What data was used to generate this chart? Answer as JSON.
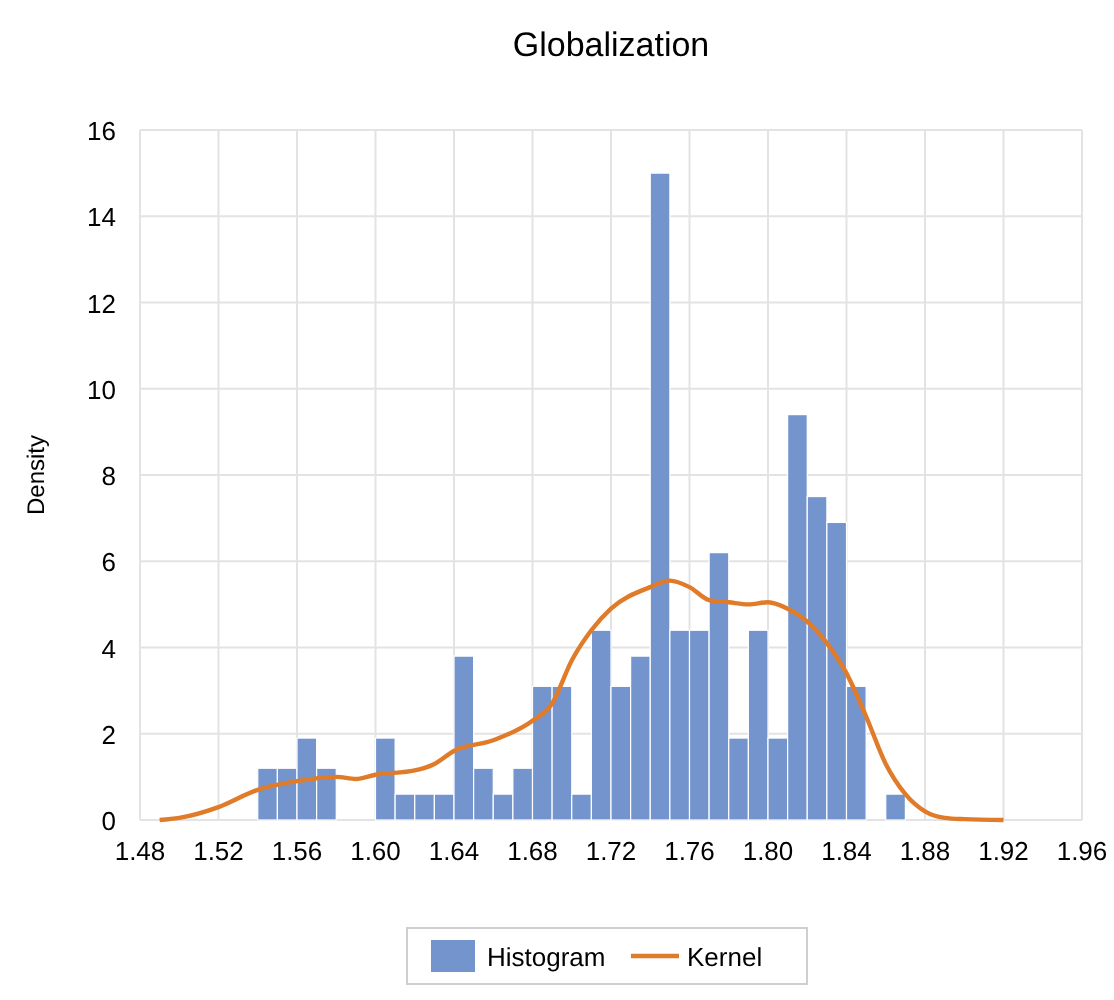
{
  "chart_data": {
    "type": "histogram",
    "title": "Globalization",
    "ylabel": "Density",
    "bins": [
      1.54,
      1.55,
      1.56,
      1.57,
      1.58,
      1.59,
      1.6,
      1.61,
      1.62,
      1.63,
      1.64,
      1.65,
      1.66,
      1.67,
      1.68,
      1.69,
      1.7,
      1.71,
      1.72,
      1.73,
      1.74,
      1.75,
      1.76,
      1.77,
      1.78,
      1.79,
      1.8,
      1.81,
      1.82,
      1.83,
      1.84,
      1.85,
      1.86,
      1.87
    ],
    "series": [
      {
        "name": "Histogram",
        "color": "#7394cc",
        "values": [
          1.2,
          1.2,
          1.9,
          1.2,
          0,
          0,
          1.9,
          0.6,
          0.6,
          0.6,
          3.8,
          1.2,
          0.6,
          1.2,
          3.1,
          3.1,
          0.6,
          4.4,
          3.1,
          3.8,
          15,
          4.4,
          4.4,
          6.2,
          1.9,
          4.4,
          1.9,
          9.4,
          7.5,
          6.9,
          3.1,
          0,
          0.6
        ]
      },
      {
        "name": "Kernel",
        "type": "line",
        "color": "#e07b2a",
        "x": [
          1.49,
          1.5,
          1.52,
          1.54,
          1.56,
          1.58,
          1.59,
          1.6,
          1.62,
          1.63,
          1.64,
          1.66,
          1.68,
          1.69,
          1.7,
          1.71,
          1.72,
          1.74,
          1.75,
          1.76,
          1.77,
          1.78,
          1.79,
          1.8,
          1.81,
          1.82,
          1.83,
          1.84,
          1.85,
          1.86,
          1.87,
          1.88,
          1.89,
          1.9,
          1.92
        ],
        "values": [
          0,
          0.05,
          0.3,
          0.7,
          0.9,
          1.0,
          0.95,
          1.05,
          1.15,
          1.3,
          1.6,
          1.85,
          2.3,
          2.7,
          3.7,
          4.4,
          4.9,
          5.4,
          5.55,
          5.4,
          5.1,
          5.05,
          5.0,
          5.05,
          4.9,
          4.6,
          4.1,
          3.4,
          2.4,
          1.3,
          0.6,
          0.2,
          0.05,
          0.02,
          0
        ]
      }
    ],
    "xlim": [
      1.48,
      1.96
    ],
    "xticks": [
      {
        "value": 1.48,
        "label": "1.48"
      },
      {
        "value": 1.52,
        "label": "1.52"
      },
      {
        "value": 1.56,
        "label": "1.56"
      },
      {
        "value": 1.6,
        "label": "1.60"
      },
      {
        "value": 1.64,
        "label": "1.64"
      },
      {
        "value": 1.68,
        "label": "1.68"
      },
      {
        "value": 1.72,
        "label": "1.72"
      },
      {
        "value": 1.76,
        "label": "1.76"
      },
      {
        "value": 1.8,
        "label": "1.80"
      },
      {
        "value": 1.84,
        "label": "1.84"
      },
      {
        "value": 1.88,
        "label": "1.88"
      },
      {
        "value": 1.92,
        "label": "1.92"
      },
      {
        "value": 1.96,
        "label": "1.96"
      }
    ],
    "ylim": [
      0,
      16
    ],
    "yticks": [
      0,
      2,
      4,
      6,
      8,
      10,
      12,
      14,
      16
    ],
    "grid": true,
    "legend": "bottom"
  }
}
